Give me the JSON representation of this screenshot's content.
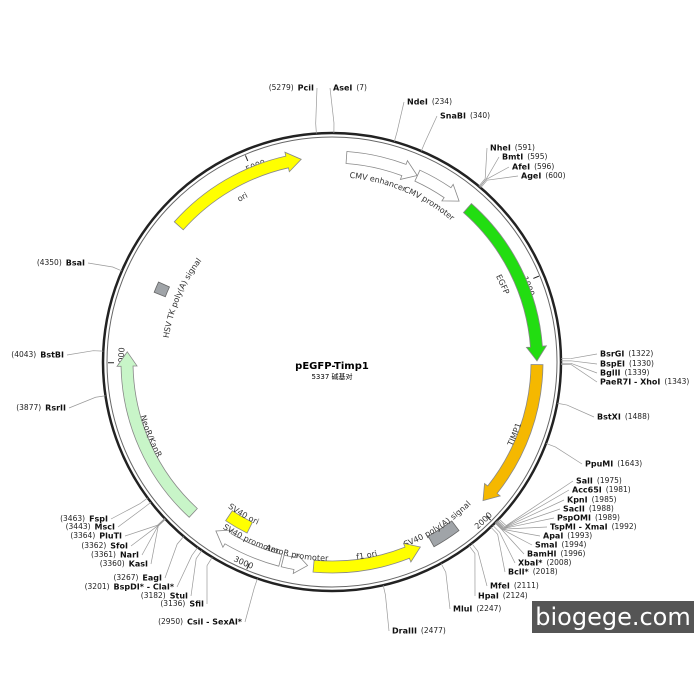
{
  "title": "pEGFP-Timp1",
  "size": {
    "value": 5337,
    "label": "5337 碱基对"
  },
  "ticks": [
    1000,
    2000,
    3000,
    4000,
    5000
  ],
  "features": [
    {
      "name": "CMV enhancer",
      "start": 60,
      "end": 364,
      "color": "#ffffff",
      "direction": "cw"
    },
    {
      "name": "CMV promoter",
      "start": 365,
      "end": 568,
      "color": "#ffffff",
      "direction": "cw"
    },
    {
      "name": "EGFP",
      "start": 613,
      "end": 1330,
      "color": "#22dd11",
      "direction": "cw"
    },
    {
      "name": "TIMP1",
      "start": 1345,
      "end": 1965,
      "color": "#f5b800",
      "direction": "cw"
    },
    {
      "name": "SV40 poly(A) signal",
      "start": 2120,
      "end": 2240,
      "color": "#a0a4a8",
      "direction": "none"
    },
    {
      "name": "f1 ori",
      "start": 2290,
      "end": 2745,
      "color": "#ffff00",
      "direction": "ccw"
    },
    {
      "name": "AmpR promoter",
      "start": 2770,
      "end": 2875,
      "color": "#ffffff",
      "direction": "ccw"
    },
    {
      "name": "SV40 promoter",
      "start": 2885,
      "end": 3180,
      "color": "#ffffff",
      "direction": "cw"
    },
    {
      "name": "SV40 ori",
      "start": 3060,
      "end": 3170,
      "color": "#ffff00",
      "direction": "none"
    },
    {
      "name": "NeoR/KanR",
      "start": 3300,
      "end": 4045,
      "color": "#c8f5c8",
      "direction": "cw"
    },
    {
      "name": "HSV TK poly(A) signal",
      "start": 4320,
      "end": 4370,
      "color": "#a0a4a8",
      "direction": "none"
    },
    {
      "name": "ori",
      "start": 4620,
      "end": 5209,
      "color": "#ffff00",
      "direction": "cw"
    }
  ],
  "sites": [
    {
      "name": "AseI",
      "position": {
        "value": 7,
        "label": "(7)"
      }
    },
    {
      "name": "NdeI",
      "position": {
        "value": 234,
        "label": "(234)"
      }
    },
    {
      "name": "SnaBI",
      "position": {
        "value": 340,
        "label": "(340)"
      }
    },
    {
      "name": "NheI",
      "position": {
        "value": 591,
        "label": "(591)"
      }
    },
    {
      "name": "BmtI",
      "position": {
        "value": 595,
        "label": "(595)"
      }
    },
    {
      "name": "AfeI",
      "position": {
        "value": 596,
        "label": "(596)"
      }
    },
    {
      "name": "AgeI",
      "position": {
        "value": 600,
        "label": "(600)"
      }
    },
    {
      "name": "BsrGI",
      "position": {
        "value": 1322,
        "label": "(1322)"
      }
    },
    {
      "name": "BspEI",
      "position": {
        "value": 1330,
        "label": "(1330)"
      }
    },
    {
      "name": "BglII",
      "position": {
        "value": 1339,
        "label": "(1339)"
      }
    },
    {
      "name": "PaeR7I - XhoI",
      "position": {
        "value": 1343,
        "label": "(1343)"
      }
    },
    {
      "name": "BstXI",
      "position": {
        "value": 1488,
        "label": "(1488)"
      }
    },
    {
      "name": "PpuMI",
      "position": {
        "value": 1643,
        "label": "(1643)"
      }
    },
    {
      "name": "SalI",
      "position": {
        "value": 1975,
        "label": "(1975)"
      }
    },
    {
      "name": "Acc65I",
      "position": {
        "value": 1981,
        "label": "(1981)"
      }
    },
    {
      "name": "KpnI",
      "position": {
        "value": 1985,
        "label": "(1985)"
      }
    },
    {
      "name": "SacII",
      "position": {
        "value": 1988,
        "label": "(1988)"
      }
    },
    {
      "name": "PspOMI",
      "position": {
        "value": 1989,
        "label": "(1989)"
      }
    },
    {
      "name": "TspMI - XmaI",
      "position": {
        "value": 1992,
        "label": "(1992)"
      }
    },
    {
      "name": "ApaI",
      "position": {
        "value": 1993,
        "label": "(1993)"
      }
    },
    {
      "name": "SmaI",
      "position": {
        "value": 1994,
        "label": "(1994)"
      }
    },
    {
      "name": "BamHI",
      "position": {
        "value": 1996,
        "label": "(1996)"
      }
    },
    {
      "name": "XbaI*",
      "position": {
        "value": 2008,
        "label": "(2008)"
      },
      "color": "#999999"
    },
    {
      "name": "BclI*",
      "position": {
        "value": 2018,
        "label": "(2018)"
      },
      "color": "#999999"
    },
    {
      "name": "MfeI",
      "position": {
        "value": 2111,
        "label": "(2111)"
      }
    },
    {
      "name": "HpaI",
      "position": {
        "value": 2124,
        "label": "(2124)"
      }
    },
    {
      "name": "MluI",
      "position": {
        "value": 2247,
        "label": "(2247)"
      }
    },
    {
      "name": "DraIII",
      "position": {
        "value": 2477,
        "label": "(2477)"
      }
    },
    {
      "name": "CsiI - SexAI*",
      "position": {
        "value": 2950,
        "label": "(2950)"
      }
    },
    {
      "name": "SfiI",
      "position": {
        "value": 3136,
        "label": "(3136)"
      }
    },
    {
      "name": "StuI",
      "position": {
        "value": 3182,
        "label": "(3182)"
      }
    },
    {
      "name": "BspDI* - ClaI*",
      "position": {
        "value": 3201,
        "label": "(3201)"
      },
      "color": "#999999"
    },
    {
      "name": "EagI",
      "position": {
        "value": 3267,
        "label": "(3267)"
      }
    },
    {
      "name": "KasI",
      "position": {
        "value": 3360,
        "label": "(3360)"
      }
    },
    {
      "name": "NarI",
      "position": {
        "value": 3361,
        "label": "(3361)"
      }
    },
    {
      "name": "SfoI",
      "position": {
        "value": 3362,
        "label": "(3362)"
      }
    },
    {
      "name": "PluTI",
      "position": {
        "value": 3364,
        "label": "(3364)"
      }
    },
    {
      "name": "MscI",
      "position": {
        "value": 3443,
        "label": "(3443)"
      }
    },
    {
      "name": "FspI",
      "position": {
        "value": 3463,
        "label": "(3463)"
      }
    },
    {
      "name": "RsrII",
      "position": {
        "value": 3877,
        "label": "(3877)"
      }
    },
    {
      "name": "BstBI",
      "position": {
        "value": 4043,
        "label": "(4043)"
      }
    },
    {
      "name": "BsaI",
      "position": {
        "value": 4350,
        "label": "(4350)"
      }
    },
    {
      "name": "PciI",
      "position": {
        "value": 5279,
        "label": "(5279)"
      }
    }
  ],
  "watermark": "biogege.com"
}
